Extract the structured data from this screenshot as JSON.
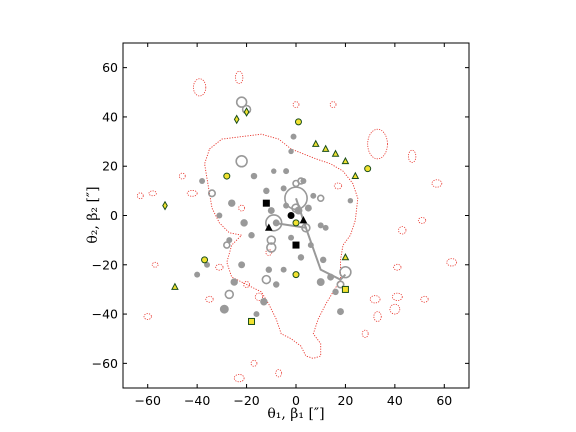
{
  "chart_data": {
    "type": "scatter",
    "title": "",
    "xlabel": "θ₁, β₁ [″]",
    "ylabel": "θ₂, β₂ [″]",
    "xlim": [
      -70,
      70
    ],
    "ylim": [
      -70,
      70
    ],
    "x_ticks": [
      -60,
      -40,
      -20,
      0,
      20,
      40,
      60
    ],
    "y_ticks": [
      -60,
      -40,
      -20,
      0,
      20,
      40,
      60
    ],
    "x_tick_labels": [
      "−60",
      "−40",
      "−20",
      "0",
      "20",
      "40",
      "60"
    ],
    "y_tick_labels": [
      "−60",
      "−40",
      "−20",
      "0",
      "20",
      "40",
      "60"
    ],
    "grid": false,
    "colors": {
      "critical_curve": "#e8332a",
      "galaxies": "#999999",
      "marker_fill": "#f2e230",
      "marker_edge": "#1a4d1a",
      "central": "#000000"
    },
    "critical_curve_main": [
      [
        -35,
        27
      ],
      [
        -30,
        31
      ],
      [
        -22,
        32
      ],
      [
        -14,
        33
      ],
      [
        -7,
        31
      ],
      [
        -2,
        27
      ],
      [
        3,
        25
      ],
      [
        8,
        23
      ],
      [
        14,
        21
      ],
      [
        19,
        18
      ],
      [
        23,
        13
      ],
      [
        25,
        7
      ],
      [
        24,
        -2
      ],
      [
        22,
        -8
      ],
      [
        19,
        -12
      ],
      [
        18,
        -18
      ],
      [
        18,
        -26
      ],
      [
        15,
        -31
      ],
      [
        12,
        -36
      ],
      [
        9,
        -42
      ],
      [
        7,
        -48
      ],
      [
        10,
        -52
      ],
      [
        10,
        -57
      ],
      [
        7,
        -58
      ],
      [
        4,
        -57
      ],
      [
        2,
        -53
      ],
      [
        -2,
        -50
      ],
      [
        -6,
        -48
      ],
      [
        -8,
        -42
      ],
      [
        -11,
        -36
      ],
      [
        -14,
        -31
      ],
      [
        -18,
        -29
      ],
      [
        -22,
        -27
      ],
      [
        -26,
        -25
      ],
      [
        -28,
        -19
      ],
      [
        -26,
        -12
      ],
      [
        -22,
        -8
      ],
      [
        -27,
        -7
      ],
      [
        -31,
        -3
      ],
      [
        -34,
        3
      ],
      [
        -35,
        9
      ],
      [
        -36,
        15
      ],
      [
        -37,
        21
      ],
      [
        -35,
        27
      ]
    ],
    "critical_curve_small": [
      [
        -39,
        52,
        2.5,
        3.5
      ],
      [
        -23,
        56,
        1.5,
        2.5
      ],
      [
        33,
        29,
        4,
        6
      ],
      [
        47,
        24,
        1.5,
        2.5
      ],
      [
        57,
        13,
        2.0,
        1.5
      ],
      [
        -63,
        8,
        1.2,
        1.2
      ],
      [
        -58,
        9,
        1.5,
        1.0
      ],
      [
        -42,
        9,
        2,
        1.2
      ],
      [
        -22,
        3,
        1.2,
        1.2
      ],
      [
        43,
        -6,
        1.5,
        1.5
      ],
      [
        51,
        -2,
        1.5,
        1.2
      ],
      [
        63,
        -19,
        2,
        1.5
      ],
      [
        41,
        -21,
        1.5,
        1.2
      ],
      [
        -57,
        -20,
        1.2,
        1.0
      ],
      [
        -31,
        -21,
        1.5,
        1.2
      ],
      [
        -15,
        -33,
        1.5,
        1.5
      ],
      [
        -35,
        -34,
        1.5,
        1.2
      ],
      [
        -20,
        -28,
        1.2,
        1.2
      ],
      [
        32,
        -34,
        2,
        1.5
      ],
      [
        41,
        -33,
        2,
        1.5
      ],
      [
        52,
        -34,
        1.5,
        1.2
      ],
      [
        40,
        -38,
        2,
        2
      ],
      [
        33,
        -41,
        1.5,
        2
      ],
      [
        -60,
        -41,
        1.5,
        1.2
      ],
      [
        -23,
        -66,
        2,
        1.5
      ],
      [
        -7,
        -64,
        1.2,
        1.5
      ],
      [
        28,
        -48,
        1.2,
        1.5
      ],
      [
        -11,
        -15,
        1.2,
        1.2
      ],
      [
        -17,
        -60,
        1.2,
        1.2
      ],
      [
        0,
        45,
        1.2,
        1.2
      ],
      [
        15,
        45,
        1.2,
        1.2
      ],
      [
        -46,
        16,
        1.2,
        1.2
      ],
      [
        17,
        12,
        1.5,
        1.2
      ]
    ],
    "galaxies_filled": [
      [
        -38,
        14,
        1.2
      ],
      [
        -26,
        5,
        1.5
      ],
      [
        -21,
        -3,
        1.5
      ],
      [
        -12,
        10,
        1.3
      ],
      [
        -10,
        2,
        1.4
      ],
      [
        -5,
        11,
        1.2
      ],
      [
        -4,
        4,
        1.2
      ],
      [
        1,
        2,
        1.6
      ],
      [
        5,
        3,
        1.4
      ],
      [
        7,
        8,
        1.2
      ],
      [
        10,
        -4,
        1.2
      ],
      [
        -8,
        -3,
        1.4
      ],
      [
        -2,
        -9,
        1.2
      ],
      [
        2,
        -17,
        1.3
      ],
      [
        6,
        -12,
        1.2
      ],
      [
        10,
        -27,
        1.6
      ],
      [
        14,
        -25,
        1.4
      ],
      [
        16,
        -31,
        1.3
      ],
      [
        -18,
        -8,
        1.3
      ],
      [
        -25,
        -27,
        1.5
      ],
      [
        -13,
        -35,
        1.5
      ],
      [
        -22,
        -20,
        1.4
      ],
      [
        -8,
        -28,
        1.3
      ],
      [
        11,
        -18,
        1.3
      ],
      [
        -36,
        -20,
        1.2
      ],
      [
        -1,
        32,
        1.2
      ],
      [
        -17,
        16,
        1.3
      ],
      [
        -9,
        18,
        1.1
      ],
      [
        -4,
        18,
        1.2
      ],
      [
        3,
        14,
        1.2
      ],
      [
        22,
        6,
        1.1
      ],
      [
        -31,
        0,
        1.2
      ],
      [
        -16,
        -40,
        1.2
      ],
      [
        12,
        -5,
        1.2
      ],
      [
        -27,
        -10,
        1.2
      ],
      [
        -5,
        -22,
        1.2
      ],
      [
        -2,
        26,
        1.1
      ],
      [
        -40,
        -24,
        1.2
      ],
      [
        18,
        -39,
        1.4
      ],
      [
        -29,
        -38,
        1.8
      ],
      [
        -11,
        -22,
        1.3
      ]
    ],
    "galaxies_open": [
      [
        -22,
        46,
        2.0
      ],
      [
        -20,
        43,
        1.6
      ],
      [
        -22,
        22,
        2.2
      ],
      [
        -34,
        9,
        1.3
      ],
      [
        -28,
        -12,
        1.2
      ],
      [
        0,
        13,
        1.2
      ],
      [
        -10,
        -13,
        1.8
      ],
      [
        4,
        -5,
        1.6
      ],
      [
        -10,
        -10,
        1.6
      ],
      [
        20,
        -23,
        2.2
      ],
      [
        18,
        -28,
        1.3
      ],
      [
        -12,
        -26,
        1.6
      ],
      [
        -27,
        -32,
        1.6
      ],
      [
        2,
        14,
        1.2
      ],
      [
        0,
        7,
        4.5
      ],
      [
        -9,
        -3,
        3.2
      ],
      [
        0,
        3,
        1.6
      ],
      [
        10,
        7,
        1.2
      ]
    ],
    "galaxy_lines": [
      [
        [
          -9,
          -3
        ],
        [
          4,
          -5
        ],
        [
          10,
          -22
        ],
        [
          18,
          -26
        ],
        [
          20,
          -24
        ]
      ],
      [
        [
          4,
          -5
        ],
        [
          0,
          7
        ]
      ]
    ],
    "markers": [
      {
        "shape": "diamond",
        "x": -20,
        "y": 42
      },
      {
        "shape": "diamond",
        "x": -24,
        "y": 39
      },
      {
        "shape": "diamond",
        "x": -53,
        "y": 4
      },
      {
        "shape": "circle",
        "x": -28,
        "y": 16
      },
      {
        "shape": "circle",
        "x": -37,
        "y": -18
      },
      {
        "shape": "circle",
        "x": 29,
        "y": 19
      },
      {
        "shape": "circle",
        "x": 0,
        "y": -24
      },
      {
        "shape": "circle",
        "x": 0,
        "y": -3
      },
      {
        "shape": "circle",
        "x": 1,
        "y": 38
      },
      {
        "shape": "triangle",
        "x": 8,
        "y": 29
      },
      {
        "shape": "triangle",
        "x": 12,
        "y": 27
      },
      {
        "shape": "triangle",
        "x": 16,
        "y": 25
      },
      {
        "shape": "triangle",
        "x": 20,
        "y": 22
      },
      {
        "shape": "triangle",
        "x": 24,
        "y": 16
      },
      {
        "shape": "triangle",
        "x": -49,
        "y": -29
      },
      {
        "shape": "triangle",
        "x": 20,
        "y": -17
      },
      {
        "shape": "square",
        "x": -18,
        "y": -43
      },
      {
        "shape": "square",
        "x": 20,
        "y": -30
      }
    ],
    "central_markers": [
      {
        "shape": "circle",
        "x": -2,
        "y": 0
      },
      {
        "shape": "square",
        "x": -12,
        "y": 5
      },
      {
        "shape": "triangle",
        "x": -11,
        "y": -5
      },
      {
        "shape": "square",
        "x": 0,
        "y": -12
      },
      {
        "shape": "triangle",
        "x": 3,
        "y": -2
      }
    ]
  }
}
